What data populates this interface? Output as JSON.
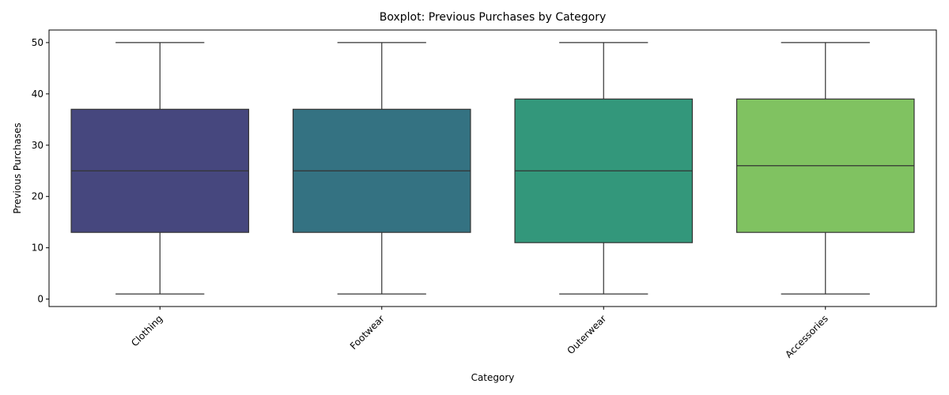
{
  "chart_data": {
    "type": "box",
    "title": "Boxplot: Previous Purchases by Category",
    "xlabel": "Category",
    "ylabel": "Previous Purchases",
    "ylim": [
      -1.45,
      52.45
    ],
    "yticks": [
      0,
      10,
      20,
      30,
      40,
      50
    ],
    "grid": false,
    "categories": [
      "Clothing",
      "Footwear",
      "Outerwear",
      "Accessories"
    ],
    "boxes": [
      {
        "category": "Clothing",
        "whisker_low": 1,
        "q1": 13,
        "median": 25,
        "q3": 37,
        "whisker_high": 50,
        "color": "#46477e"
      },
      {
        "category": "Footwear",
        "whisker_low": 1,
        "q1": 13,
        "median": 25,
        "q3": 37,
        "whisker_high": 50,
        "color": "#347282"
      },
      {
        "category": "Outerwear",
        "whisker_low": 1,
        "q1": 11,
        "median": 25,
        "q3": 39,
        "whisker_high": 50,
        "color": "#33977b"
      },
      {
        "category": "Accessories",
        "whisker_low": 1,
        "q1": 13,
        "median": 26,
        "q3": 39,
        "whisker_high": 50,
        "color": "#80c261"
      }
    ]
  }
}
